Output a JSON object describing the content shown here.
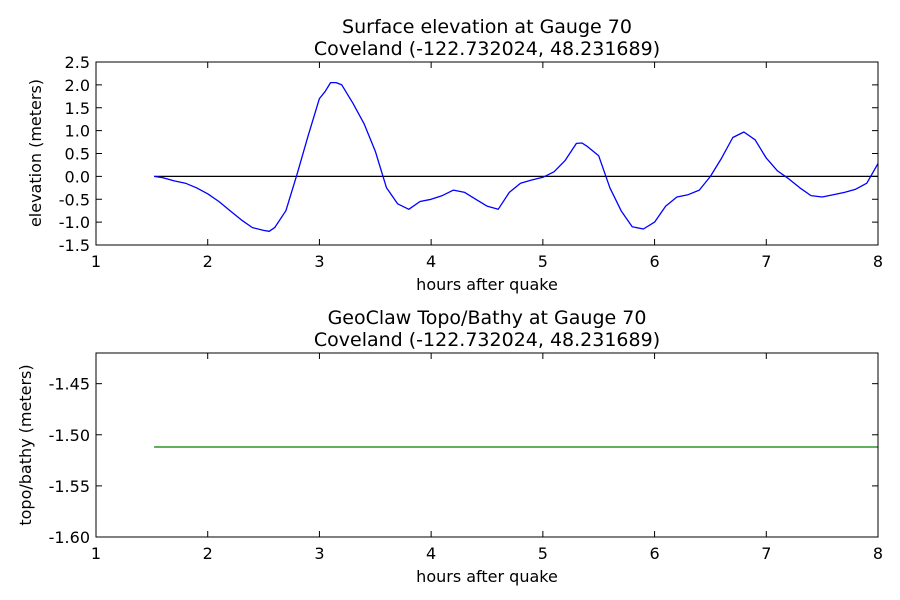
{
  "chart_data": [
    {
      "type": "line",
      "title": "Surface elevation at Gauge 70",
      "subtitle": "Coveland  (-122.732024, 48.231689)",
      "xlabel": "hours after quake",
      "ylabel": "elevation (meters)",
      "xlim": [
        1,
        8
      ],
      "ylim": [
        -1.5,
        2.5
      ],
      "xticks": [
        "1",
        "2",
        "3",
        "4",
        "5",
        "6",
        "7",
        "8"
      ],
      "yticks": [
        "2.5",
        "2.0",
        "1.5",
        "1.0",
        "0.5",
        "0.0",
        "-0.5",
        "-1.0",
        "-1.5"
      ],
      "grid": false,
      "reference_line": {
        "y": 0.0,
        "x": [
          1.52,
          8.0
        ],
        "color": "#000000"
      },
      "series": [
        {
          "color": "#0000ff",
          "x": [
            1.52,
            1.6,
            1.7,
            1.8,
            1.9,
            2.0,
            2.1,
            2.2,
            2.3,
            2.4,
            2.5,
            2.55,
            2.6,
            2.7,
            2.8,
            2.9,
            3.0,
            3.05,
            3.1,
            3.15,
            3.2,
            3.3,
            3.4,
            3.5,
            3.6,
            3.7,
            3.8,
            3.9,
            4.0,
            4.1,
            4.2,
            4.3,
            4.4,
            4.5,
            4.6,
            4.7,
            4.8,
            4.9,
            5.0,
            5.1,
            5.2,
            5.3,
            5.35,
            5.4,
            5.5,
            5.6,
            5.7,
            5.8,
            5.9,
            6.0,
            6.1,
            6.2,
            6.3,
            6.4,
            6.5,
            6.6,
            6.7,
            6.8,
            6.9,
            7.0,
            7.1,
            7.2,
            7.3,
            7.4,
            7.5,
            7.6,
            7.7,
            7.8,
            7.9,
            8.0
          ],
          "y": [
            0.0,
            -0.03,
            -0.1,
            -0.15,
            -0.25,
            -0.38,
            -0.55,
            -0.75,
            -0.95,
            -1.12,
            -1.18,
            -1.2,
            -1.12,
            -0.75,
            0.05,
            0.9,
            1.7,
            1.85,
            2.05,
            2.05,
            2.0,
            1.6,
            1.15,
            0.55,
            -0.25,
            -0.6,
            -0.72,
            -0.55,
            -0.5,
            -0.42,
            -0.3,
            -0.35,
            -0.5,
            -0.65,
            -0.72,
            -0.35,
            -0.15,
            -0.08,
            -0.02,
            0.1,
            0.35,
            0.72,
            0.73,
            0.65,
            0.45,
            -0.25,
            -0.75,
            -1.1,
            -1.15,
            -1.0,
            -0.65,
            -0.45,
            -0.4,
            -0.3,
            0.0,
            0.4,
            0.85,
            0.97,
            0.8,
            0.4,
            0.12,
            -0.05,
            -0.25,
            -0.42,
            -0.45,
            -0.4,
            -0.35,
            -0.28,
            -0.15,
            0.28
          ]
        }
      ]
    },
    {
      "type": "line",
      "title": "GeoClaw Topo/Bathy at Gauge 70",
      "subtitle": "Coveland  (-122.732024, 48.231689)",
      "xlabel": "hours after quake",
      "ylabel": "topo/bathy (meters)",
      "xlim": [
        1,
        8
      ],
      "ylim": [
        -1.6,
        -1.42
      ],
      "xticks": [
        "1",
        "2",
        "3",
        "4",
        "5",
        "6",
        "7",
        "8"
      ],
      "yticks": [
        "-1.45",
        "-1.50",
        "-1.55",
        "-1.60"
      ],
      "grid": false,
      "series": [
        {
          "color": "#008000",
          "x": [
            1.52,
            8.0
          ],
          "y": [
            -1.512,
            -1.512
          ]
        }
      ]
    }
  ]
}
